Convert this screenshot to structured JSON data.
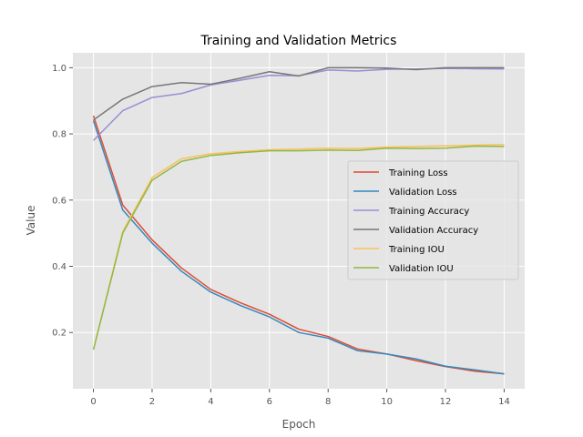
{
  "chart_data": {
    "type": "line",
    "title": "Training and Validation Metrics",
    "xlabel": "Epoch",
    "ylabel": "Value",
    "xlim": [
      -0.7,
      14.7
    ],
    "ylim": [
      0.03,
      1.045
    ],
    "xticks": [
      0,
      2,
      4,
      6,
      8,
      10,
      12,
      14
    ],
    "yticks": [
      0.2,
      0.4,
      0.6,
      0.8,
      1.0
    ],
    "ytick_labels": [
      "0.2",
      "0.4",
      "0.6",
      "0.8",
      "1.0"
    ],
    "grid": true,
    "legend_position": "center-right",
    "x": [
      0,
      1,
      2,
      3,
      4,
      5,
      6,
      7,
      8,
      9,
      10,
      11,
      12,
      13,
      14
    ],
    "series": [
      {
        "name": "Training Loss",
        "color": "#E24A33",
        "values": [
          0.855,
          0.585,
          0.48,
          0.395,
          0.33,
          0.29,
          0.255,
          0.21,
          0.188,
          0.15,
          0.135,
          0.115,
          0.097,
          0.083,
          0.075
        ]
      },
      {
        "name": "Validation Loss",
        "color": "#348ABD",
        "values": [
          0.84,
          0.57,
          0.47,
          0.385,
          0.322,
          0.282,
          0.247,
          0.2,
          0.183,
          0.145,
          0.135,
          0.12,
          0.098,
          0.087,
          0.075
        ]
      },
      {
        "name": "Training Accuracy",
        "color": "#988ED5",
        "values": [
          0.78,
          0.87,
          0.91,
          0.922,
          0.948,
          0.962,
          0.977,
          0.976,
          0.993,
          0.99,
          0.995,
          0.996,
          0.998,
          0.997,
          0.996
        ]
      },
      {
        "name": "Validation Accuracy",
        "color": "#777777",
        "values": [
          0.842,
          0.905,
          0.943,
          0.955,
          0.95,
          0.968,
          0.988,
          0.975,
          1.0,
          1.0,
          0.999,
          0.994,
          1.0,
          1.0,
          1.0
        ]
      },
      {
        "name": "Training IOU",
        "color": "#FBC15E",
        "values": [
          0.148,
          0.505,
          0.668,
          0.725,
          0.74,
          0.747,
          0.752,
          0.754,
          0.757,
          0.756,
          0.76,
          0.762,
          0.764,
          0.766,
          0.768
        ]
      },
      {
        "name": "Validation IOU",
        "color": "#8EBA42",
        "values": [
          0.148,
          0.5,
          0.66,
          0.717,
          0.735,
          0.743,
          0.749,
          0.749,
          0.751,
          0.75,
          0.757,
          0.756,
          0.757,
          0.763,
          0.762
        ]
      }
    ]
  }
}
